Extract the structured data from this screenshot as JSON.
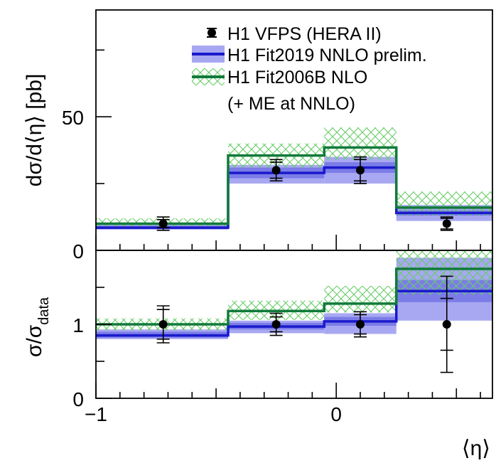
{
  "chart_data": [
    {
      "type": "step",
      "panel": "cross-section",
      "ylabel": "dσ/d⟨η⟩ [pb]",
      "xlim": [
        -1,
        0.65
      ],
      "ylim": [
        0,
        90
      ],
      "yticks": [
        0,
        50
      ],
      "legend_placement": "top-right",
      "bin_edges": [
        -1,
        -0.45,
        -0.05,
        0.25,
        0.65
      ],
      "data_points": {
        "name": "H1 VFPS (HERA II)",
        "x": [
          -0.72,
          -0.25,
          0.1,
          0.46
        ],
        "y": [
          10,
          30,
          30,
          10
        ],
        "err_stat": [
          1.5,
          3,
          4,
          2
        ],
        "err_tot": [
          2.5,
          4,
          5,
          2.5
        ],
        "color": "#000000"
      },
      "series": [
        {
          "name": "H1 Fit2019 NNLO prelim.",
          "values": [
            8.5,
            29,
            31,
            14
          ],
          "band_inner_low": [
            8,
            27,
            29,
            13
          ],
          "band_inner_high": [
            9.2,
            31,
            33,
            15
          ],
          "band_outer_low": [
            7.8,
            25,
            25,
            11
          ],
          "band_outer_high": [
            9.5,
            32,
            35,
            17
          ],
          "line_color": "#1a1acc",
          "band_color": "#a8a8f2",
          "band_dark_color": "#7c7ce8"
        },
        {
          "name": "H1 Fit2006B NLO",
          "name_line2": "(+ ME at NNLO)",
          "values": [
            10,
            35.5,
            38.5,
            16
          ],
          "band_low": [
            9,
            31,
            34,
            13
          ],
          "band_high": [
            12,
            40,
            46,
            22
          ],
          "line_color": "#117a3b",
          "hatch_color": "#66cc66"
        }
      ]
    },
    {
      "type": "step",
      "panel": "ratio",
      "ylabel": "σ/σ",
      "ylabel_sub": "data",
      "xlabel": "⟨η⟩",
      "xlim": [
        -1,
        0.65
      ],
      "ylim": [
        0,
        2
      ],
      "xticks": [
        -1,
        0
      ],
      "xtick_labels": [
        "−1",
        "0"
      ],
      "yticks": [
        0,
        1
      ],
      "bin_edges": [
        -1,
        -0.45,
        -0.05,
        0.25,
        0.65
      ],
      "data_points": {
        "x": [
          -0.72,
          -0.25,
          0.1,
          0.46
        ],
        "y": [
          1,
          1,
          1,
          1
        ],
        "err_stat": [
          0.2,
          0.1,
          0.13,
          0.35
        ],
        "err_tot": [
          0.25,
          0.15,
          0.17,
          0.65
        ]
      },
      "series": [
        {
          "name": "H1 Fit2019 NNLO prelim.",
          "values": [
            0.85,
            0.97,
            1.04,
            1.45
          ],
          "band_inner_low": [
            0.82,
            0.93,
            0.98,
            1.3
          ],
          "band_inner_high": [
            0.9,
            1.02,
            1.1,
            1.6
          ],
          "band_outer_low": [
            0.8,
            0.88,
            0.87,
            1.05
          ],
          "band_outer_high": [
            0.93,
            1.05,
            1.15,
            1.9
          ],
          "line_color": "#1a1acc",
          "band_color": "#a8a8f2",
          "band_dark_color": "#7c7ce8"
        },
        {
          "name": "H1 Fit2006B NLO",
          "values": [
            1,
            1.18,
            1.28,
            1.75
          ],
          "band_low": [
            0.92,
            1.06,
            1.16,
            1.4
          ],
          "band_high": [
            1.08,
            1.32,
            1.52,
            2.0
          ],
          "line_color": "#117a3b",
          "hatch_color": "#66cc66"
        }
      ]
    }
  ]
}
